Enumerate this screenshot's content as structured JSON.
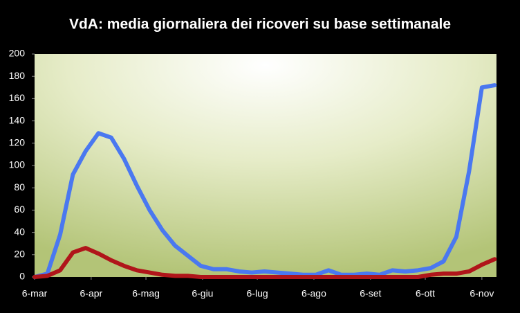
{
  "chart_data": {
    "type": "line",
    "title": "VdA: media giornaliera dei ricoveri su base settimanale",
    "x": [
      0,
      7,
      14,
      21,
      28,
      35,
      42,
      49,
      56,
      63,
      70,
      77,
      84,
      91,
      98,
      105,
      112,
      119,
      126,
      133,
      140,
      147,
      154,
      161,
      168,
      175,
      182,
      189,
      196,
      203,
      210,
      217,
      224,
      231,
      238,
      245,
      252
    ],
    "series": [
      {
        "color": "#4a78f0",
        "values": [
          0,
          3,
          38,
          92,
          113,
          129,
          125,
          106,
          82,
          60,
          42,
          28,
          19,
          10,
          7,
          7,
          5,
          4,
          5,
          4,
          3,
          2,
          2,
          6,
          2,
          2,
          3,
          2,
          6,
          5,
          6,
          8,
          14,
          36,
          95,
          170,
          172
        ]
      },
      {
        "color": "#b0151a",
        "values": [
          0,
          1,
          6,
          22,
          26,
          21,
          15,
          10,
          6,
          4,
          2,
          1,
          1,
          0,
          0,
          0,
          0,
          0,
          0,
          0,
          0,
          0,
          0,
          0,
          0,
          0,
          0,
          0,
          0,
          0,
          0,
          2,
          3,
          3,
          5,
          11,
          16
        ]
      }
    ],
    "xlim": [
      0,
      253
    ],
    "xticks": [
      {
        "value": 0,
        "label": "6-mar"
      },
      {
        "value": 31,
        "label": "6-apr"
      },
      {
        "value": 61,
        "label": "6-mag"
      },
      {
        "value": 92,
        "label": "6-giu"
      },
      {
        "value": 122,
        "label": "6-lug"
      },
      {
        "value": 153,
        "label": "6-ago"
      },
      {
        "value": 184,
        "label": "6-set"
      },
      {
        "value": 214,
        "label": "6-ott"
      },
      {
        "value": 245,
        "label": "6-nov"
      }
    ],
    "ylim": [
      0,
      200
    ],
    "yticks": [
      0,
      20,
      40,
      60,
      80,
      100,
      120,
      140,
      160,
      180,
      200
    ]
  }
}
